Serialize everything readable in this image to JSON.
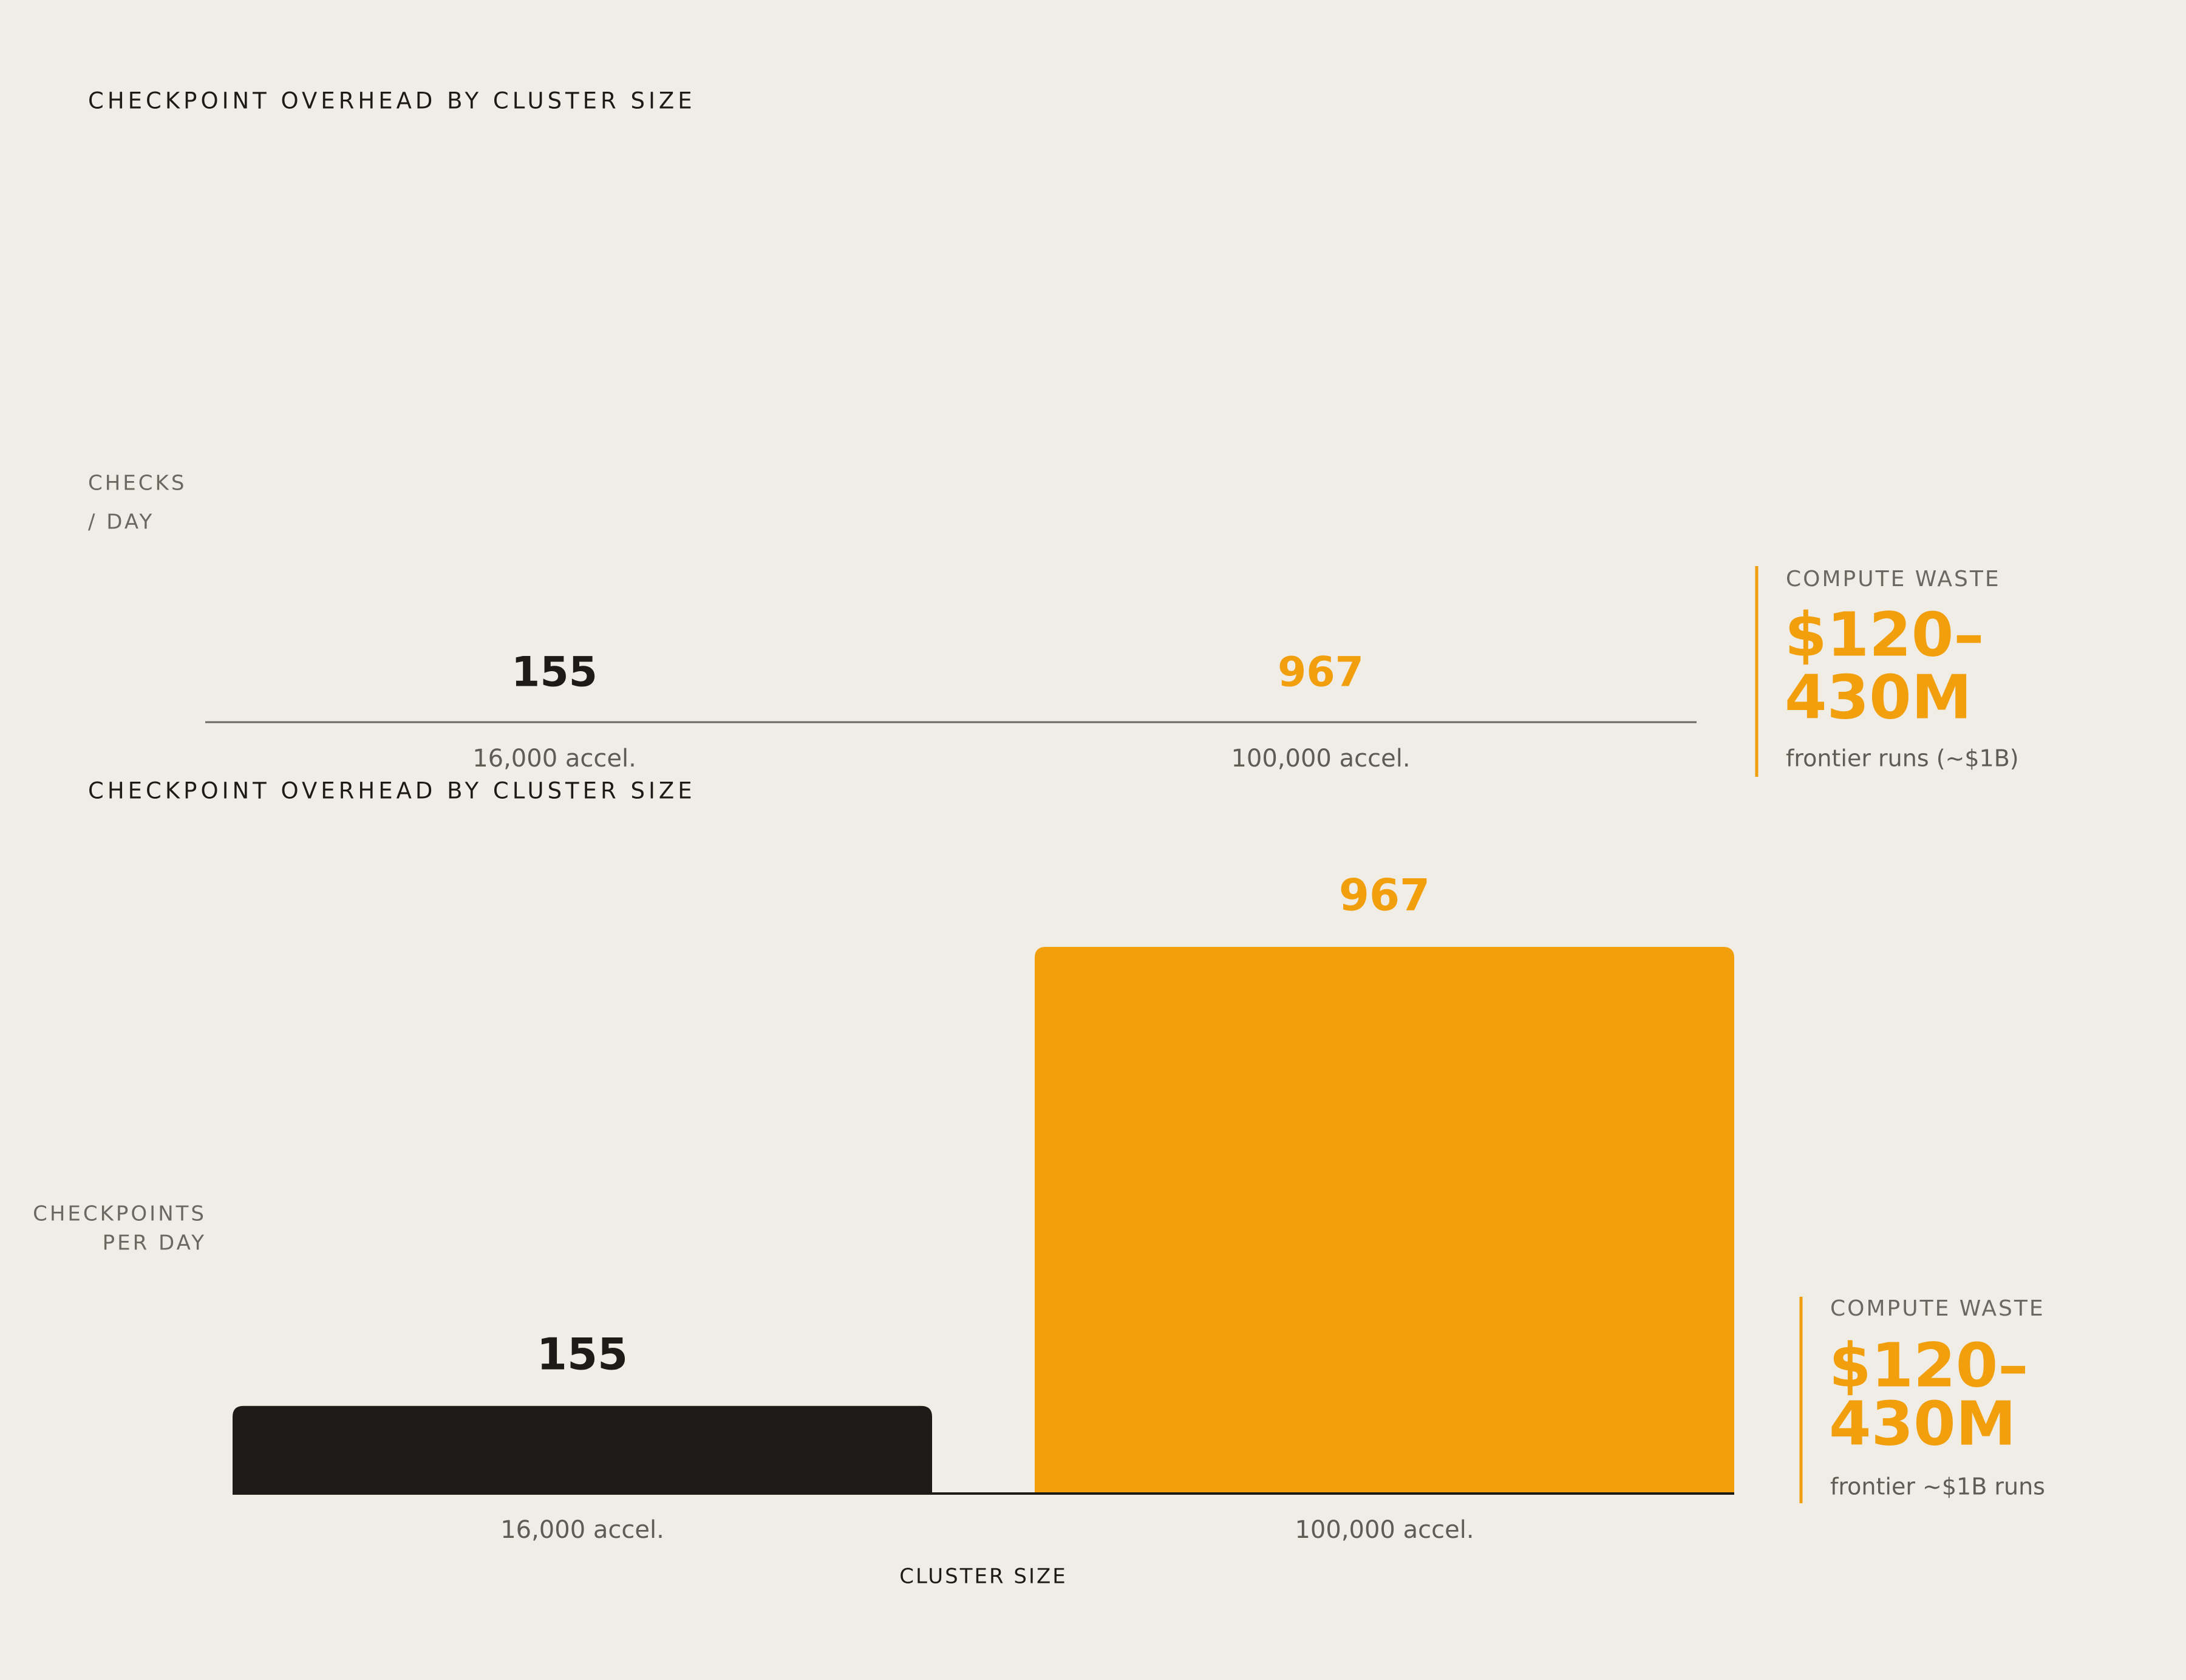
{
  "chart_data": [
    {
      "type": "bar",
      "title": "CHECKPOINT OVERHEAD BY CLUSTER SIZE",
      "ylabel": [
        "CHECKS",
        "/ DAY"
      ],
      "categories": [
        "16,000 accel.",
        "100,000 accel."
      ],
      "values": [
        155,
        967
      ],
      "colors": [
        "#1e1a17",
        "#f29f0e"
      ],
      "annotation": {
        "label": "COMPUTE WASTE",
        "value": [
          "$120–",
          "430M"
        ],
        "note": "frontier runs (~$1B)"
      }
    },
    {
      "type": "bar",
      "title": "CHECKPOINT OVERHEAD BY CLUSTER SIZE",
      "ylabel": [
        "CHECKPOINTS",
        "PER DAY"
      ],
      "xlabel": "CLUSTER SIZE",
      "categories": [
        "16,000 accel.",
        "100,000 accel."
      ],
      "values": [
        155,
        967
      ],
      "colors": [
        "#1e1a17",
        "#f29f0e"
      ],
      "ylim": [
        0,
        967
      ],
      "annotation": {
        "label": "COMPUTE WASTE",
        "value": [
          "$120–",
          "430M"
        ],
        "note": "frontier ~$1B runs"
      }
    }
  ]
}
